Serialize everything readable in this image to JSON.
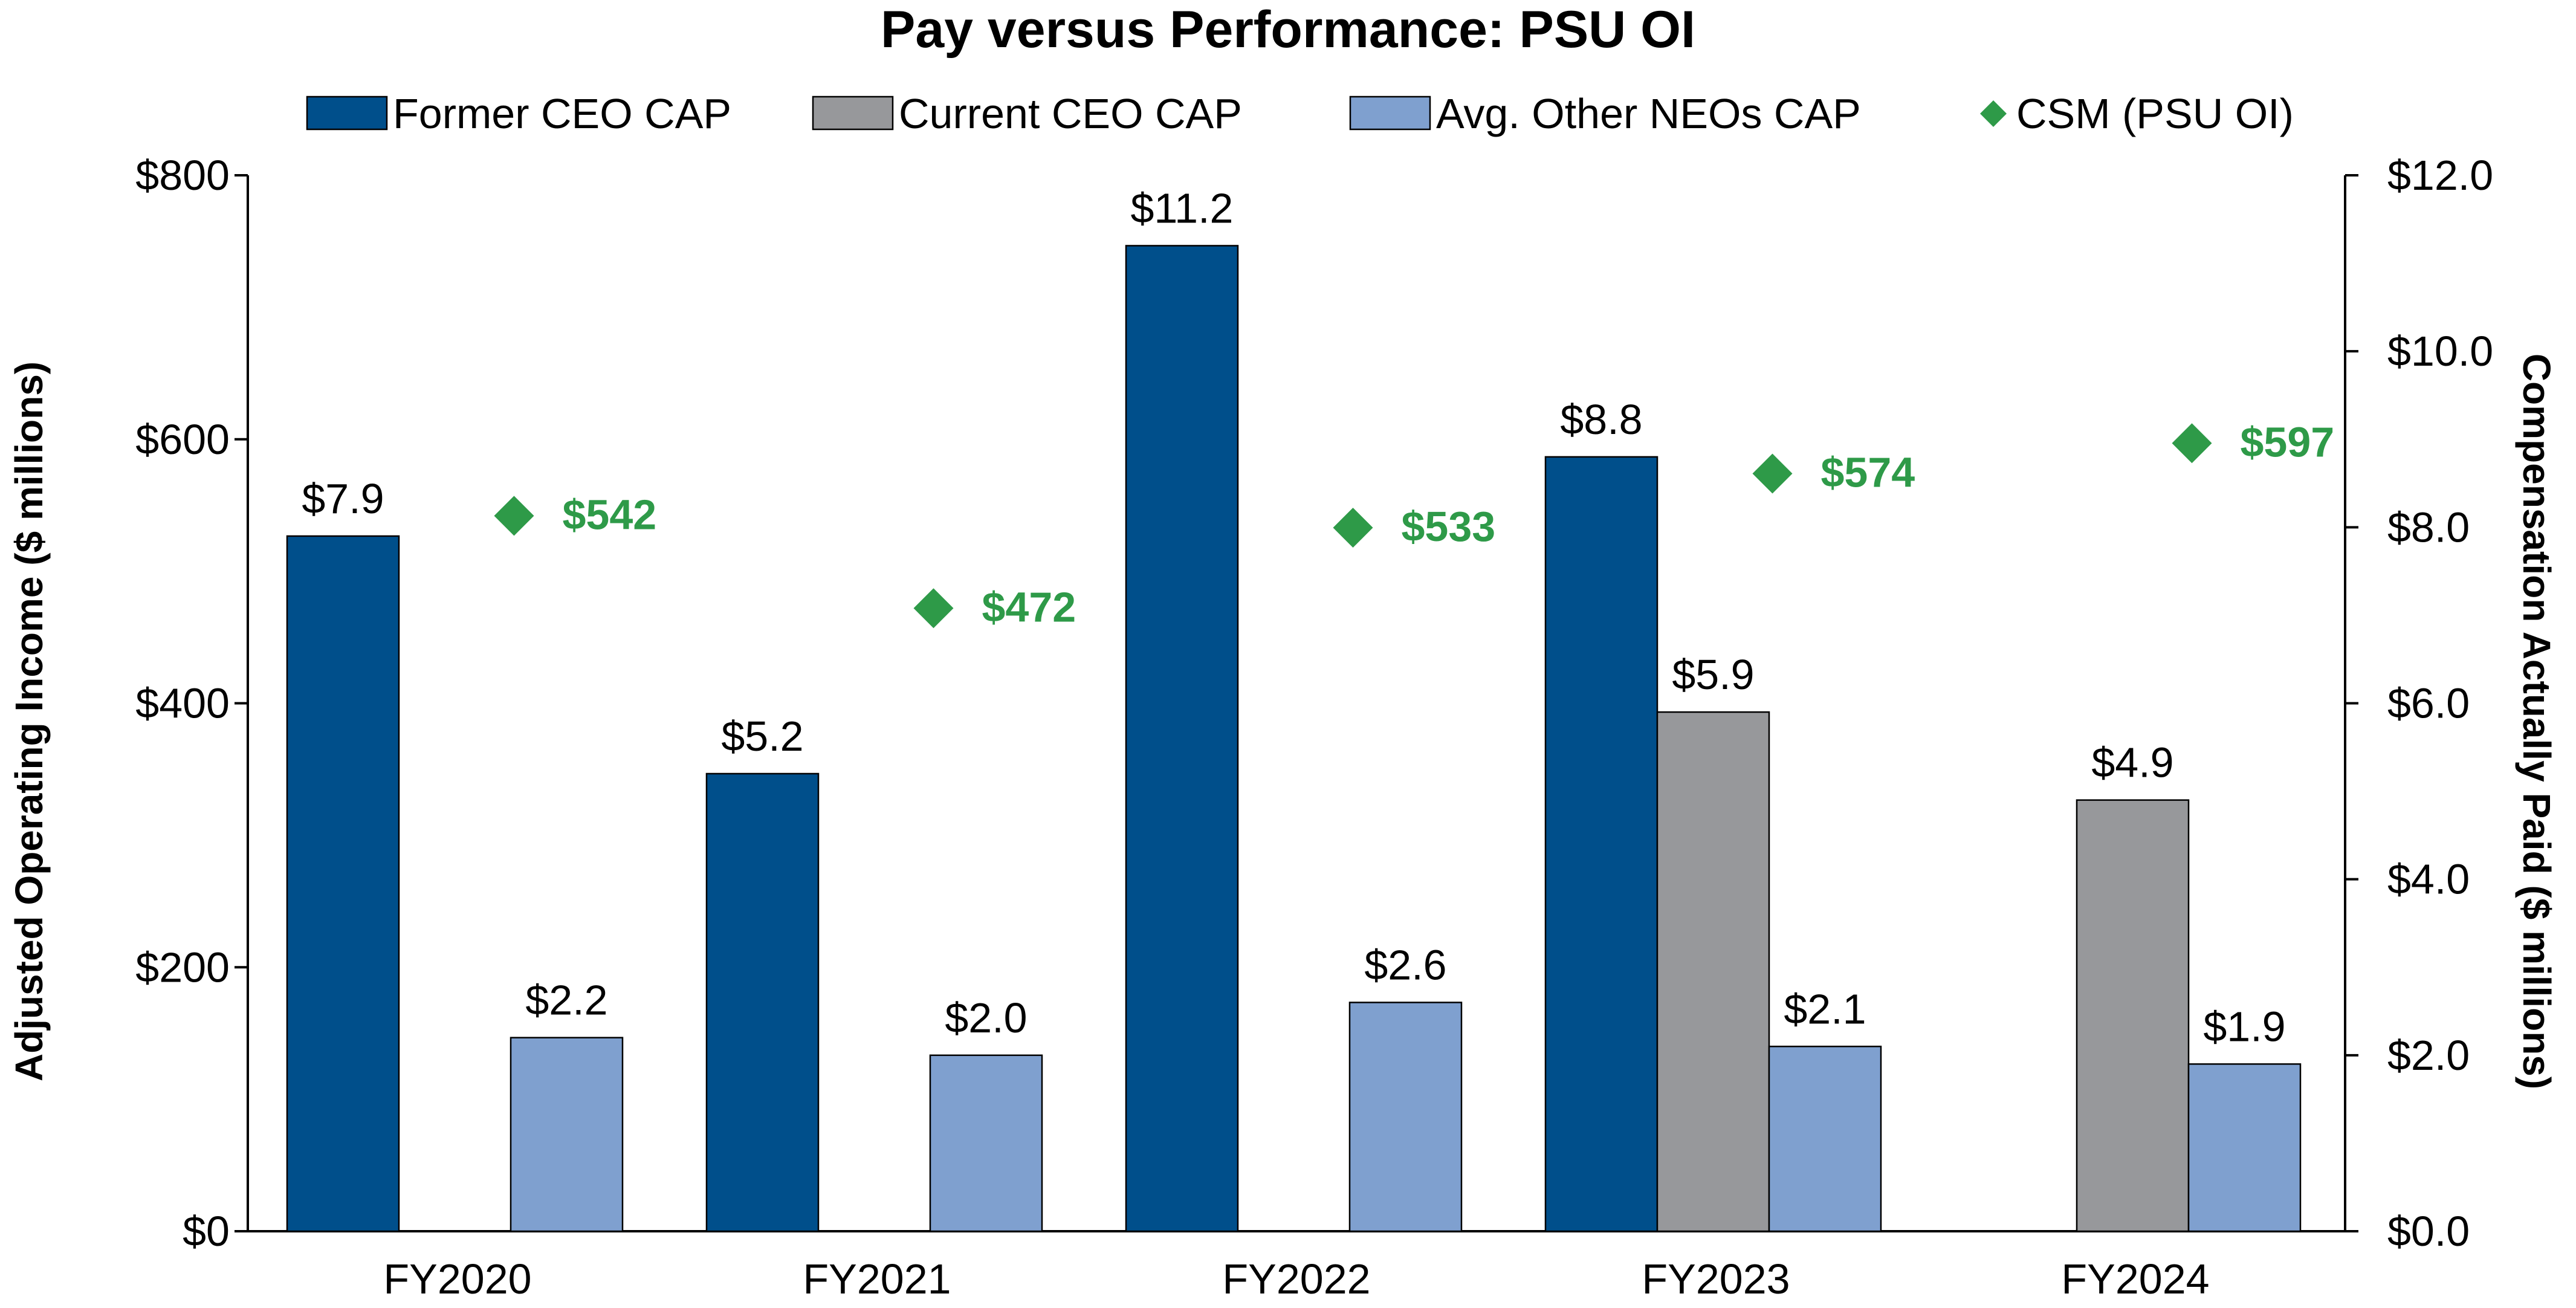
{
  "chart_data": {
    "type": "bar",
    "title": "Pay versus Performance: PSU OI",
    "categories": [
      "FY2020",
      "FY2021",
      "FY2022",
      "FY2023",
      "FY2024"
    ],
    "y_left": {
      "label": "Adjusted Operating Income ($ millions)",
      "min": 0,
      "max": 800,
      "step": 200,
      "tick_labels": [
        "$0",
        "$200",
        "$400",
        "$600",
        "$800"
      ]
    },
    "y_right": {
      "label": "Compensation Actually Paid ($ millions)",
      "min": 0,
      "max": 12,
      "step": 2,
      "tick_labels": [
        "$0.0",
        "$2.0",
        "$4.0",
        "$6.0",
        "$8.0",
        "$10.0",
        "$12.0"
      ]
    },
    "bar_series": [
      {
        "name": "Former CEO CAP",
        "color": "#004f8b",
        "axis": "right",
        "values": [
          7.9,
          5.2,
          11.2,
          8.8,
          null
        ],
        "labels": [
          "$7.9",
          "$5.2",
          "$11.2",
          "$8.8",
          null
        ]
      },
      {
        "name": "Current CEO CAP",
        "color": "#97989b",
        "axis": "right",
        "values": [
          null,
          null,
          null,
          5.9,
          4.9
        ],
        "labels": [
          null,
          null,
          null,
          "$5.9",
          "$4.9"
        ]
      },
      {
        "name": "Avg. Other NEOs CAP",
        "color": "#7fa0cf",
        "axis": "right",
        "values": [
          2.2,
          2.0,
          2.6,
          2.1,
          1.9
        ],
        "labels": [
          "$2.2",
          "$2.0",
          "$2.6",
          "$2.1",
          "$1.9"
        ]
      }
    ],
    "marker_series": {
      "name": "CSM (PSU OI)",
      "color": "#2e9a48",
      "axis": "left",
      "marker": "diamond",
      "values": [
        542,
        472,
        533,
        574,
        597
      ],
      "labels": [
        "$542",
        "$472",
        "$533",
        "$574",
        "$597"
      ]
    },
    "legend_position": "top"
  }
}
